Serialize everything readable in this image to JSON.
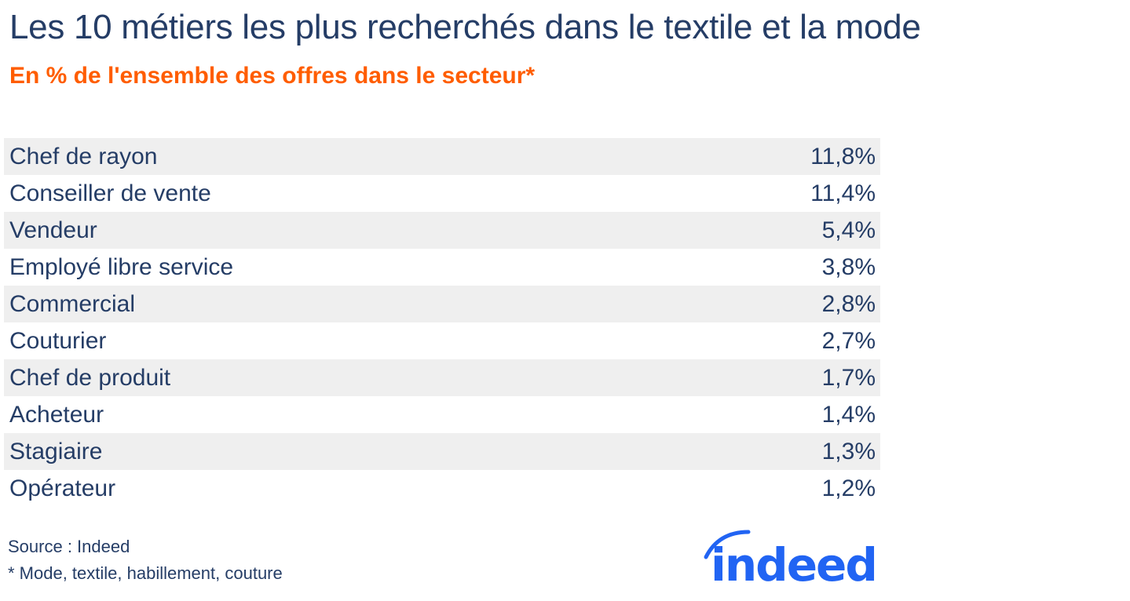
{
  "title": "Les 10 métiers les plus recherchés dans le textile et la mode",
  "subtitle": "En % de l'ensemble des offres dans le secteur*",
  "chart_data": {
    "type": "table",
    "title": "Les 10 métiers les plus recherchés dans le textile et la mode",
    "subtitle": "En % de l'ensemble des offres dans le secteur*",
    "rows": [
      {
        "label": "Chef de rayon",
        "value": "11,8%"
      },
      {
        "label": "Conseiller de vente",
        "value": "11,4%"
      },
      {
        "label": "Vendeur",
        "value": "5,4%"
      },
      {
        "label": "Employé libre service",
        "value": "3,8%"
      },
      {
        "label": "Commercial",
        "value": "2,8%"
      },
      {
        "label": "Couturier",
        "value": "2,7%"
      },
      {
        "label": "Chef de produit",
        "value": "1,7%"
      },
      {
        "label": "Acheteur",
        "value": "1,4%"
      },
      {
        "label": "Stagiaire",
        "value": "1,3%"
      },
      {
        "label": "Opérateur",
        "value": "1,2%"
      }
    ]
  },
  "source": "Source : Indeed",
  "note": "* Mode, textile, habillement, couture",
  "logo": "indeed",
  "colors": {
    "text": "#253d66",
    "accent": "#ff5d00",
    "logo": "#2164f3",
    "stripe": "#efefef"
  }
}
